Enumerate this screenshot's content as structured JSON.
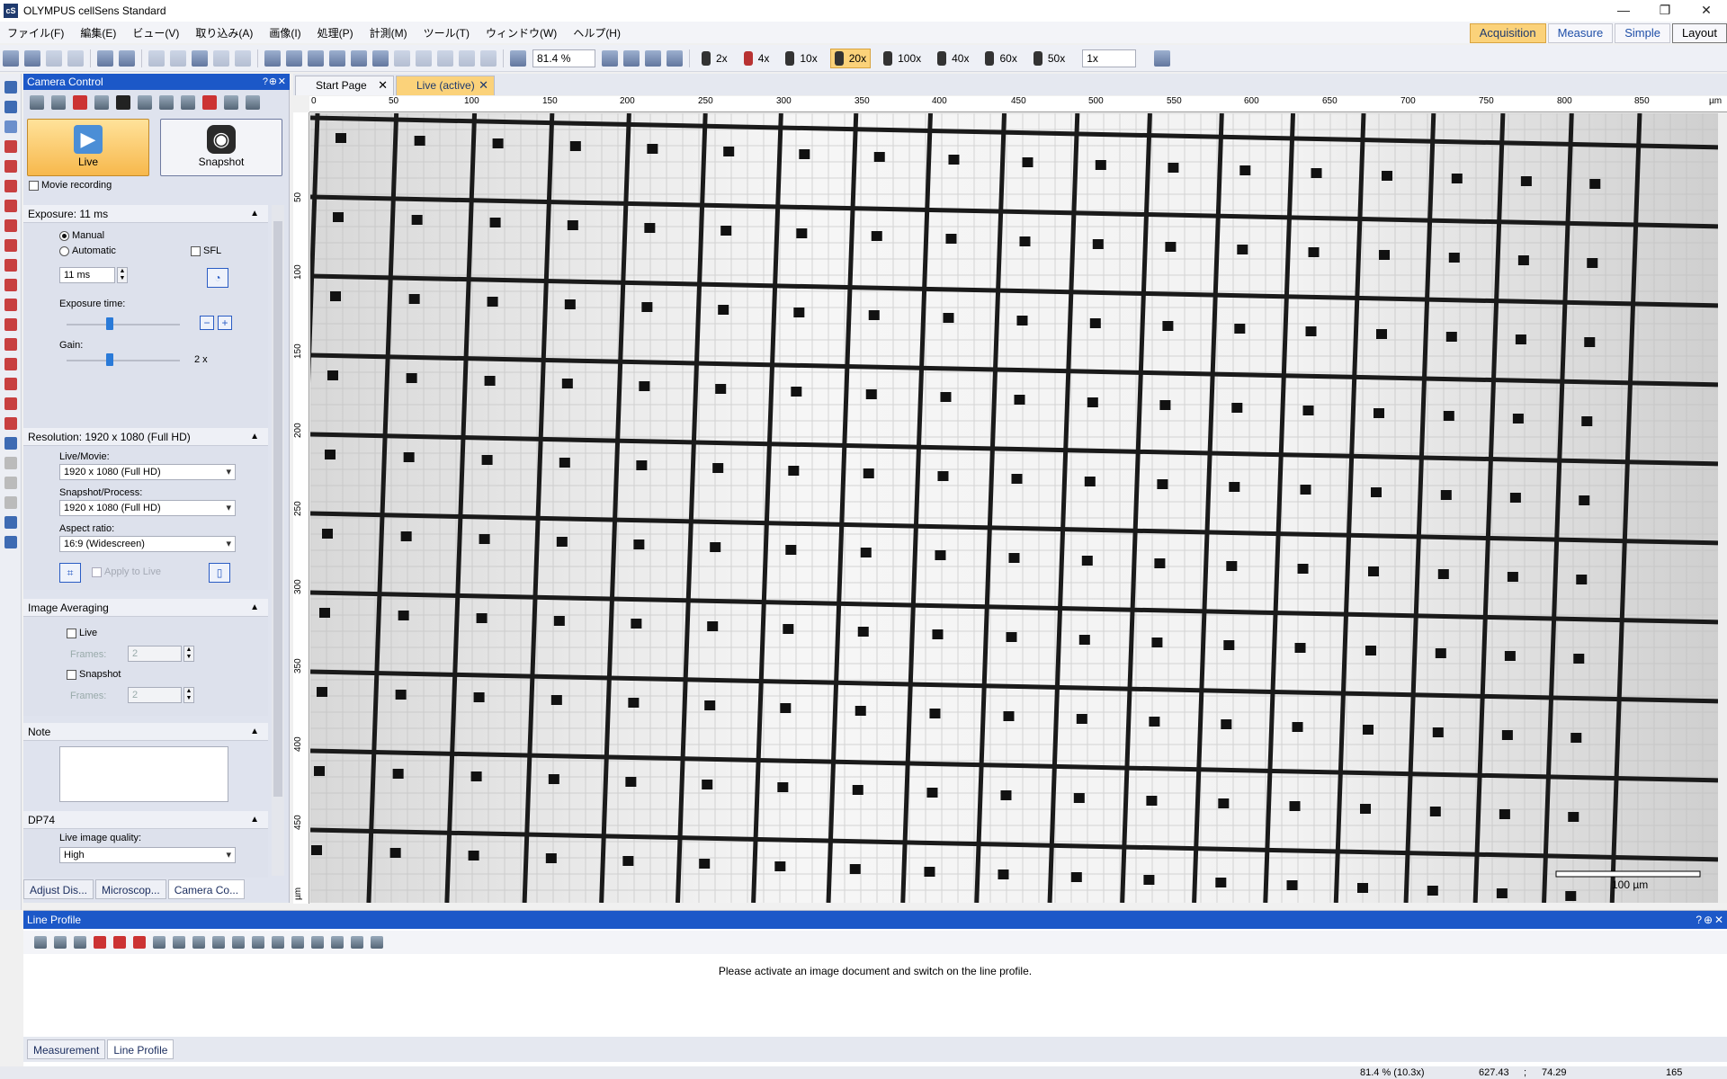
{
  "app": {
    "title": "OLYMPUS cellSens Standard",
    "window_controls": [
      "—",
      "❐",
      "✕"
    ]
  },
  "menu": [
    "ファイル(F)",
    "編集(E)",
    "ビュー(V)",
    "取り込み(A)",
    "画像(I)",
    "処理(P)",
    "計測(M)",
    "ツール(T)",
    "ウィンドウ(W)",
    "ヘルプ(H)"
  ],
  "modes": {
    "acquisition": "Acquisition",
    "measure": "Measure",
    "simple": "Simple",
    "layout": "Layout"
  },
  "toolbar": {
    "zoom": "81.4 %",
    "objectives": [
      "2x",
      "4x",
      "10x",
      "20x",
      "100x",
      "40x",
      "60x",
      "50x"
    ],
    "active_objective": "20x",
    "magnification": "1x"
  },
  "camera": {
    "panel_title": "Camera Control",
    "live_label": "Live",
    "snapshot_label": "Snapshot",
    "movie_recording": "Movie recording",
    "exposure": {
      "header": "Exposure: 11 ms",
      "manual": "Manual",
      "automatic": "Automatic",
      "sfl": "SFL",
      "value": "11 ms",
      "time_label": "Exposure time:",
      "gain_label": "Gain:",
      "gain_value": "2 x"
    },
    "resolution": {
      "header": "Resolution: 1920 x 1080 (Full HD)",
      "live_movie_label": "Live/Movie:",
      "live_movie_value": "1920 x 1080 (Full HD)",
      "snapshot_label": "Snapshot/Process:",
      "snapshot_value": "1920 x 1080 (Full HD)",
      "aspect_label": "Aspect ratio:",
      "aspect_value": "16:9 (Widescreen)",
      "apply_live": "Apply to Live"
    },
    "averaging": {
      "header": "Image Averaging",
      "live": "Live",
      "snapshot": "Snapshot",
      "frames_label": "Frames:",
      "frames_live": "2",
      "frames_snapshot": "2"
    },
    "note_header": "Note",
    "dp74": {
      "header": "DP74",
      "quality_label": "Live image quality:",
      "quality_value": "High"
    },
    "bottom_tabs": [
      "Adjust Dis...",
      "Microscop...",
      "Camera Co..."
    ]
  },
  "doc_tabs": [
    {
      "label": "Start Page"
    },
    {
      "label": "Live (active)"
    }
  ],
  "ruler": {
    "h_ticks": [
      "0",
      "50",
      "100",
      "150",
      "200",
      "250",
      "300",
      "350",
      "400",
      "450",
      "500",
      "550",
      "600",
      "650",
      "700",
      "750",
      "800",
      "850"
    ],
    "v_ticks": [
      "50",
      "100",
      "150",
      "200",
      "250",
      "300",
      "350",
      "400",
      "450"
    ],
    "unit": "µm"
  },
  "scale_bar": "100 µm",
  "line_profile": {
    "title": "Line Profile",
    "message": "Please activate an image document and switch on the line profile.",
    "tabs": [
      "Measurement",
      "Line Profile"
    ]
  },
  "status": {
    "zoom": "81.4 % (10.3x)",
    "x": "627.43",
    "sep": ";",
    "y": "74.29",
    "value": "165"
  }
}
